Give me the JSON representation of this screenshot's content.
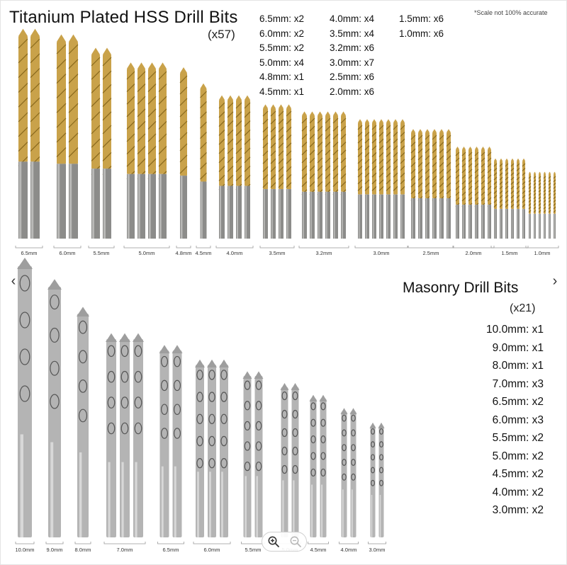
{
  "hss": {
    "title": "Titanium Plated HSS Drill Bits",
    "count": "(x57)",
    "disclaimer": "*Scale not 100% accurate",
    "spec_columns": [
      [
        "6.5mm: x2",
        "6.0mm: x2",
        "5.5mm: x2",
        "5.0mm: x4",
        "4.8mm: x1",
        "4.5mm: x1"
      ],
      [
        "4.0mm: x4",
        "3.5mm: x4",
        "3.2mm: x6",
        "3.0mm: x7",
        "2.5mm: x6",
        "2.0mm: x6"
      ],
      [
        "1.5mm: x6",
        "1.0mm: x6"
      ]
    ],
    "size_labels": [
      "6.5mm",
      "6.0mm",
      "5.5mm",
      "5.0mm",
      "4.8mm",
      "4.5mm",
      "4.0mm",
      "3.5mm",
      "3.2mm",
      "3.0mm",
      "2.5mm",
      "2.0mm",
      "1.5mm",
      "1.0mm"
    ],
    "bit_color": "#c9a24a",
    "shank_color": "#8c8c8a"
  },
  "masonry": {
    "title": "Masonry Drill Bits",
    "count": "(x21)",
    "specs": [
      "10.0mm: x1",
      "9.0mm: x1",
      "8.0mm: x1",
      "7.0mm: x3",
      "6.5mm: x2",
      "6.0mm: x3",
      "5.5mm: x2",
      "5.0mm: x2",
      "4.5mm: x2",
      "4.0mm: x2",
      "3.0mm: x2"
    ],
    "size_labels": [
      "10.0mm",
      "9.0mm",
      "8.0mm",
      "7.0mm",
      "6.5mm",
      "6.0mm",
      "5.5mm",
      "5.0mm",
      "4.5mm",
      "4.0mm",
      "3.0mm"
    ],
    "bit_color": "#b4b4b4"
  },
  "controls": {
    "prev_icon": "chevron-left-icon",
    "next_icon": "chevron-right-icon",
    "zoom_in_icon": "zoom-in-icon",
    "zoom_out_icon": "zoom-out-icon",
    "prev_glyph": "‹",
    "next_glyph": "›"
  }
}
